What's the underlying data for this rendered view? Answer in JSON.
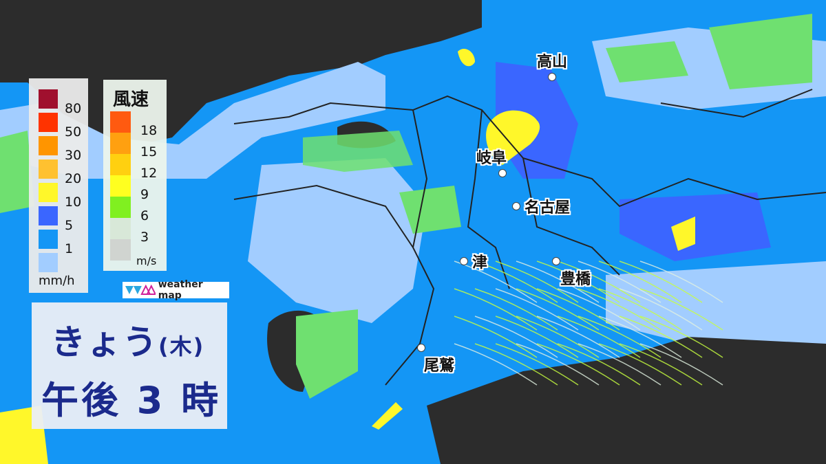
{
  "rain_legend": {
    "unit": "mm/h",
    "levels": [
      {
        "label": "80",
        "color": "#a0102e"
      },
      {
        "label": "50",
        "color": "#ff3300"
      },
      {
        "label": "30",
        "color": "#ff9500"
      },
      {
        "label": "20",
        "color": "#ffc130"
      },
      {
        "label": "10",
        "color": "#fff72a"
      },
      {
        "label": "5",
        "color": "#3a66ff"
      },
      {
        "label": "1",
        "color": "#1496f5"
      },
      {
        "label": "",
        "color": "#a2cdff"
      }
    ]
  },
  "wind_legend": {
    "title": "風速",
    "unit": "m/s",
    "levels": [
      {
        "label": "18",
        "color": "#ff5a10"
      },
      {
        "label": "15",
        "color": "#ffa010"
      },
      {
        "label": "12",
        "color": "#ffd010"
      },
      {
        "label": "9",
        "color": "#ffff20"
      },
      {
        "label": "6",
        "color": "#80f020"
      },
      {
        "label": "3",
        "color": "#d8e8d8"
      },
      {
        "label": "",
        "color": "#d0d4d0"
      }
    ]
  },
  "logo": {
    "text": "weather map"
  },
  "time": {
    "day": "きょう",
    "weekday": "(木)",
    "hour": "午後 3 時"
  },
  "cities": [
    {
      "name": "高山"
    },
    {
      "name": "岐阜"
    },
    {
      "name": "名古屋"
    },
    {
      "name": "津"
    },
    {
      "name": "豊橋"
    },
    {
      "name": "尾鷲"
    }
  ],
  "colors": {
    "land_dry": "#2c2c2c",
    "rain_light": "#a2cdff",
    "rain_1": "#1496f5",
    "rain_5": "#3a66ff",
    "rain_10": "#fff72a",
    "no_rain_green": "#6fe070"
  }
}
